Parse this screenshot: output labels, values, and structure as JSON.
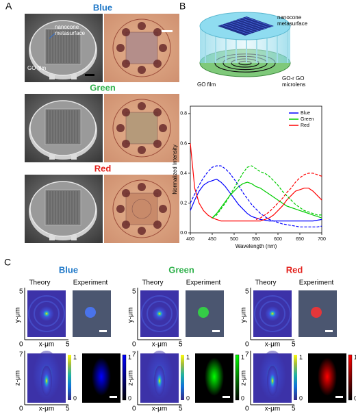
{
  "panel_labels": [
    "A",
    "B",
    "C"
  ],
  "panel_a": {
    "rows": [
      {
        "title": "Blue",
        "color": "#1f78c8"
      },
      {
        "title": "Green",
        "color": "#2eb04a"
      },
      {
        "title": "Red",
        "color": "#e3211c"
      }
    ],
    "metasurface_label": [
      "nanocone",
      "metasurface"
    ],
    "film_label": "GO film"
  },
  "panel_b": {
    "metasurface_label": [
      "nanocone",
      "metasurface"
    ],
    "film_label": "GO film",
    "microlens_label": [
      "GO-r GO",
      "microlens"
    ]
  },
  "chart_data": {
    "type": "line",
    "xlabel": "Wavelength (nm)",
    "ylabel": "Normalized Intensity",
    "x": [
      400,
      410,
      420,
      430,
      440,
      450,
      460,
      470,
      480,
      490,
      500,
      510,
      520,
      530,
      540,
      550,
      560,
      570,
      580,
      590,
      600,
      610,
      620,
      630,
      640,
      650,
      660,
      670,
      680,
      690,
      700
    ],
    "series": [
      {
        "name": "Blue",
        "color": "#0000ff",
        "values": [
          0.15,
          0.22,
          0.28,
          0.32,
          0.34,
          0.35,
          0.36,
          0.34,
          0.31,
          0.27,
          0.23,
          0.19,
          0.16,
          0.13,
          0.11,
          0.1,
          0.09,
          0.085,
          0.08,
          0.08,
          0.08,
          0.08,
          0.08,
          0.08,
          0.08,
          0.08,
          0.08,
          0.08,
          0.08,
          0.085,
          0.09
        ]
      },
      {
        "name": "Green",
        "color": "#00cc00",
        "values": [
          null,
          null,
          null,
          null,
          null,
          0.1,
          0.13,
          0.17,
          0.21,
          0.25,
          0.28,
          0.31,
          0.33,
          0.34,
          0.33,
          0.31,
          0.3,
          0.28,
          0.26,
          0.24,
          0.22,
          0.2,
          0.18,
          0.17,
          0.16,
          0.15,
          0.14,
          0.13,
          0.12,
          0.11,
          0.1
        ]
      },
      {
        "name": "Red",
        "color": "#ff0000",
        "values": [
          0.6,
          0.3,
          0.2,
          0.15,
          0.12,
          0.1,
          0.09,
          0.08,
          0.08,
          0.08,
          0.08,
          0.08,
          0.08,
          0.08,
          0.08,
          0.08,
          0.08,
          0.09,
          0.1,
          0.12,
          0.15,
          0.18,
          0.22,
          0.25,
          0.28,
          0.29,
          0.3,
          0.3,
          0.28,
          0.25,
          0.22
        ]
      },
      {
        "color": "#0000ff",
        "dashed": true,
        "values": [
          0.2,
          0.26,
          0.32,
          0.37,
          0.41,
          0.44,
          0.45,
          0.45,
          0.43,
          0.4,
          0.36,
          0.32,
          0.27,
          0.23,
          0.19,
          0.16,
          0.13,
          0.11,
          0.09,
          0.08,
          0.07,
          0.06,
          0.055,
          0.05,
          0.045,
          0.04,
          0.04,
          0.04,
          0.04,
          0.04,
          0.045
        ]
      },
      {
        "color": "#00cc00",
        "dashed": true,
        "values": [
          null,
          null,
          null,
          null,
          null,
          0.1,
          0.12,
          0.16,
          0.2,
          0.25,
          0.3,
          0.35,
          0.4,
          0.44,
          0.45,
          0.43,
          0.41,
          0.4,
          0.38,
          0.35,
          0.32,
          0.28,
          0.25,
          0.22,
          0.19,
          0.17,
          0.15,
          0.14,
          0.13,
          0.12,
          0.12
        ]
      },
      {
        "color": "#ff0000",
        "dashed": true,
        "values": [
          null,
          null,
          null,
          null,
          null,
          null,
          null,
          null,
          null,
          null,
          null,
          null,
          null,
          null,
          null,
          0.09,
          0.1,
          0.12,
          0.14,
          0.17,
          0.2,
          0.23,
          0.27,
          0.3,
          0.34,
          0.37,
          0.39,
          0.4,
          0.4,
          0.39,
          0.38
        ]
      }
    ],
    "xlim": [
      400,
      700
    ],
    "xticks": [
      400,
      450,
      500,
      550,
      600,
      650,
      700
    ],
    "ylim": [
      0,
      0.85
    ],
    "yticks": [
      {
        "value": 0,
        "label": "0.0"
      },
      0.2,
      0.4,
      0.6,
      0.8
    ],
    "legend": "upper right"
  },
  "panel_c": {
    "columns": [
      {
        "title": "Blue",
        "color": "#1f78c8",
        "spot": "#4a78ff",
        "bar": "#0000ff"
      },
      {
        "title": "Green",
        "color": "#2eb04a",
        "spot": "#30e040",
        "bar": "#00ff00"
      },
      {
        "title": "Red",
        "color": "#e3211c",
        "spot": "#ff3030",
        "bar": "#ff0000"
      }
    ],
    "theory": "Theory",
    "experiment": "Experiment",
    "x_label": "x-μm",
    "y_label": "y-μm",
    "z_label": "z-μm",
    "ticks": [
      "0",
      "5",
      "7"
    ],
    "colorbar_ticks": [
      "1",
      "0"
    ]
  }
}
